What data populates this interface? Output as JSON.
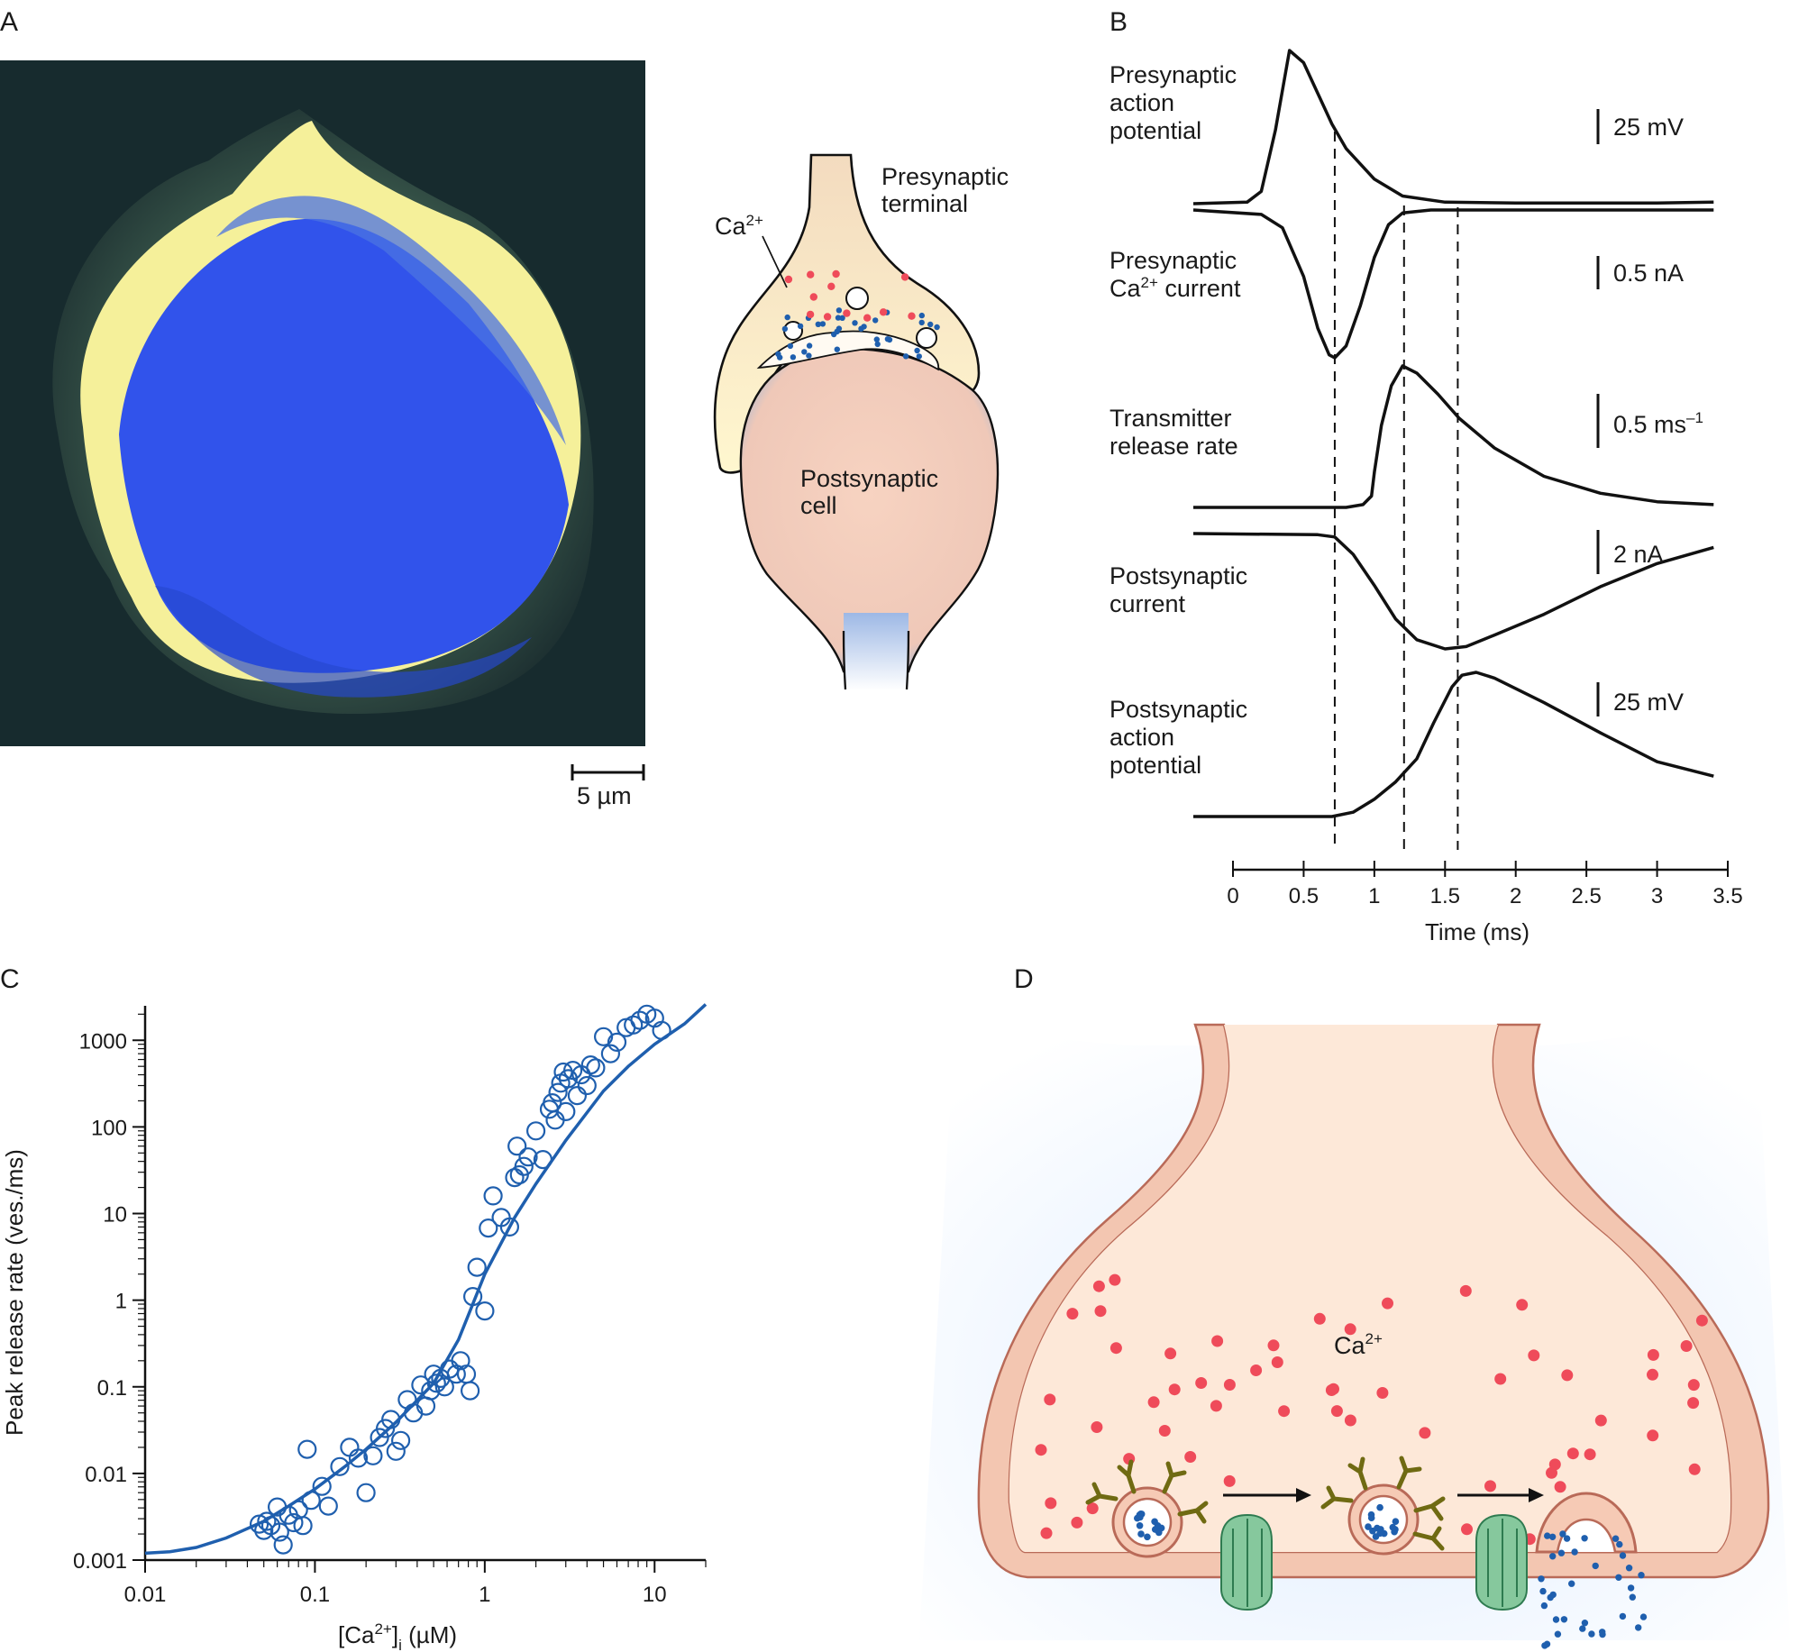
{
  "panels": {
    "a": {
      "label": "A",
      "scale_bar": "5 µm",
      "terminal_label": "Presynaptic terminal",
      "terminal_lines": [
        "Presynaptic",
        "terminal"
      ],
      "calcium_label": "Ca",
      "calcium_superscript": "2+",
      "postsynaptic_lines": [
        "Postsynaptic",
        "cell"
      ],
      "colors": {
        "dark": "#172b2e",
        "halo": "#6f8f7f",
        "yellow": "#f5f09a",
        "blue": "#2f56e8",
        "mid_blue": "#4b73e1"
      }
    },
    "b": {
      "label": "B",
      "trace_labels": [
        [
          "Presynaptic",
          "action",
          "potential"
        ],
        [
          "Presynaptic",
          "Ca^2+ current"
        ],
        [
          "Transmitter",
          "release rate"
        ],
        [
          "Postsynaptic",
          "current"
        ],
        [
          "Postsynaptic",
          "action",
          "potential"
        ]
      ],
      "scale_bars": [
        "25 mV",
        "0.5 nA",
        "0.5 ms",
        "2 nA",
        "25 mV"
      ],
      "scale_bar_superscripts": [
        "",
        "",
        "–1",
        "",
        ""
      ],
      "xlabel": "Time (ms)",
      "x_ticks": [
        "0",
        "0.5",
        "1",
        "1.5",
        "2",
        "2.5",
        "3",
        "3.5"
      ],
      "markers": [
        0.72,
        1.21,
        1.59
      ],
      "traces": [
        {
          "name": "Presynaptic action potential",
          "x": [
            0,
            0.1,
            0.2,
            0.3,
            0.4,
            0.5,
            0.6,
            0.7,
            0.8,
            1.0,
            1.2,
            1.5,
            2.0,
            3.0,
            3.4
          ],
          "y": [
            0,
            1,
            8,
            48,
            100,
            92,
            72,
            52,
            36,
            16,
            5,
            1,
            0.5,
            0.5,
            1
          ]
        },
        {
          "name": "Presynaptic Ca2+ current",
          "x": [
            0,
            0.2,
            0.35,
            0.5,
            0.6,
            0.68,
            0.72,
            0.8,
            0.9,
            1.0,
            1.1,
            1.2,
            1.4,
            3.4
          ],
          "y": [
            0,
            -3,
            -12,
            -45,
            -80,
            -98,
            -100,
            -92,
            -65,
            -32,
            -10,
            -2,
            0,
            0
          ]
        },
        {
          "name": "Transmitter release rate",
          "x": [
            0,
            0.8,
            0.92,
            0.98,
            1.0,
            1.05,
            1.12,
            1.2,
            1.3,
            1.45,
            1.6,
            1.85,
            2.2,
            2.6,
            3.0,
            3.4
          ],
          "y": [
            0,
            0,
            2,
            8,
            25,
            58,
            86,
            100,
            95,
            80,
            63,
            42,
            22,
            10,
            4,
            2
          ]
        },
        {
          "name": "Postsynaptic current",
          "x": [
            0,
            0.6,
            0.72,
            0.85,
            1.0,
            1.15,
            1.3,
            1.5,
            1.65,
            1.85,
            2.2,
            2.6,
            3.0,
            3.4
          ],
          "y": [
            0,
            -1,
            -3,
            -18,
            -45,
            -74,
            -92,
            -100,
            -98,
            -88,
            -70,
            -46,
            -26,
            -12
          ]
        },
        {
          "name": "Postsynaptic action potential",
          "x": [
            0,
            0.7,
            0.85,
            1.0,
            1.15,
            1.3,
            1.42,
            1.55,
            1.62,
            1.72,
            1.85,
            2.2,
            2.6,
            3.0,
            3.4
          ],
          "y": [
            0,
            0,
            3,
            12,
            24,
            40,
            65,
            90,
            98,
            100,
            96,
            79,
            58,
            38,
            28
          ]
        }
      ]
    },
    "c": {
      "label": "C",
      "xlabel_main": "[Ca",
      "xlabel_superscript": "2+",
      "xlabel_bracket": "]",
      "xlabel_subscript": "i",
      "xlabel_unit": " (µM)",
      "ylabel": "Peak release rate (ves./ms)",
      "point_color": "#1f5fae"
    },
    "d": {
      "label": "D",
      "calcium_label": "Ca",
      "calcium_superscript": "2+",
      "colors": {
        "cytoplasm": "#fde8d8",
        "membrane": "#b96a58",
        "calcium": "#ef4b5a",
        "transmitter": "#1f5fae",
        "channel": "#7bc89a",
        "snare": "#6f6a12"
      }
    }
  },
  "chart_data": {
    "type": "scatter",
    "title": "",
    "xlabel": "[Ca2+]i (µM)",
    "ylabel": "Peak release rate (ves./ms)",
    "x_scale": "log",
    "y_scale": "log",
    "xlim": [
      0.01,
      20
    ],
    "ylim": [
      0.001,
      2500
    ],
    "x_ticks": [
      0.01,
      0.1,
      1,
      10
    ],
    "y_ticks": [
      0.001,
      0.01,
      0.1,
      1,
      10,
      100,
      1000
    ],
    "x_tick_labels": [
      "0.01",
      "0.1",
      "1",
      "10"
    ],
    "y_tick_labels": [
      "0.001",
      "0.01",
      "0.1",
      "1",
      "10",
      "100",
      "1000"
    ],
    "grid": false,
    "legend": "none",
    "points": [
      [
        0.047,
        0.0026
      ],
      [
        0.05,
        0.0022
      ],
      [
        0.052,
        0.0028
      ],
      [
        0.055,
        0.0025
      ],
      [
        0.06,
        0.0041
      ],
      [
        0.062,
        0.0021
      ],
      [
        0.065,
        0.0015
      ],
      [
        0.07,
        0.0033
      ],
      [
        0.075,
        0.0027
      ],
      [
        0.08,
        0.0038
      ],
      [
        0.085,
        0.0025
      ],
      [
        0.09,
        0.019
      ],
      [
        0.095,
        0.0049
      ],
      [
        0.11,
        0.0071
      ],
      [
        0.12,
        0.0042
      ],
      [
        0.14,
        0.012
      ],
      [
        0.16,
        0.02
      ],
      [
        0.18,
        0.015
      ],
      [
        0.2,
        0.006
      ],
      [
        0.22,
        0.016
      ],
      [
        0.24,
        0.026
      ],
      [
        0.26,
        0.033
      ],
      [
        0.28,
        0.042
      ],
      [
        0.3,
        0.018
      ],
      [
        0.32,
        0.024
      ],
      [
        0.35,
        0.071
      ],
      [
        0.38,
        0.05
      ],
      [
        0.42,
        0.105
      ],
      [
        0.45,
        0.06
      ],
      [
        0.48,
        0.09
      ],
      [
        0.5,
        0.14
      ],
      [
        0.52,
        0.11
      ],
      [
        0.55,
        0.125
      ],
      [
        0.58,
        0.1
      ],
      [
        0.62,
        0.16
      ],
      [
        0.68,
        0.14
      ],
      [
        0.72,
        0.2
      ],
      [
        0.78,
        0.14
      ],
      [
        0.82,
        0.09
      ],
      [
        0.85,
        1.1
      ],
      [
        0.9,
        2.4
      ],
      [
        1.0,
        0.75
      ],
      [
        1.05,
        6.8
      ],
      [
        1.12,
        16
      ],
      [
        1.25,
        9
      ],
      [
        1.4,
        7
      ],
      [
        1.5,
        26
      ],
      [
        1.55,
        60
      ],
      [
        1.6,
        28
      ],
      [
        1.7,
        35
      ],
      [
        1.8,
        45
      ],
      [
        2.0,
        90
      ],
      [
        2.2,
        42
      ],
      [
        2.4,
        160
      ],
      [
        2.5,
        190
      ],
      [
        2.6,
        120
      ],
      [
        2.7,
        250
      ],
      [
        2.8,
        320
      ],
      [
        2.9,
        430
      ],
      [
        3.0,
        150
      ],
      [
        3.1,
        360
      ],
      [
        3.3,
        450
      ],
      [
        3.5,
        230
      ],
      [
        3.7,
        400
      ],
      [
        4.0,
        300
      ],
      [
        4.2,
        520
      ],
      [
        4.5,
        480
      ],
      [
        5.0,
        1100
      ],
      [
        5.5,
        700
      ],
      [
        6.0,
        950
      ],
      [
        6.8,
        1400
      ],
      [
        7.5,
        1500
      ],
      [
        8.2,
        1700
      ],
      [
        9.0,
        2000
      ],
      [
        10.0,
        1800
      ],
      [
        11.0,
        1300
      ]
    ],
    "fit_x": [
      0.01,
      0.014,
      0.02,
      0.03,
      0.05,
      0.07,
      0.1,
      0.15,
      0.2,
      0.3,
      0.5,
      0.7,
      1,
      1.5,
      2,
      3,
      5,
      7,
      10,
      15,
      20
    ],
    "fit_y": [
      0.0012,
      0.00125,
      0.0014,
      0.0018,
      0.0028,
      0.0042,
      0.0066,
      0.012,
      0.019,
      0.039,
      0.11,
      0.35,
      2.0,
      9,
      22,
      70,
      260,
      500,
      900,
      1550,
      2600
    ]
  }
}
